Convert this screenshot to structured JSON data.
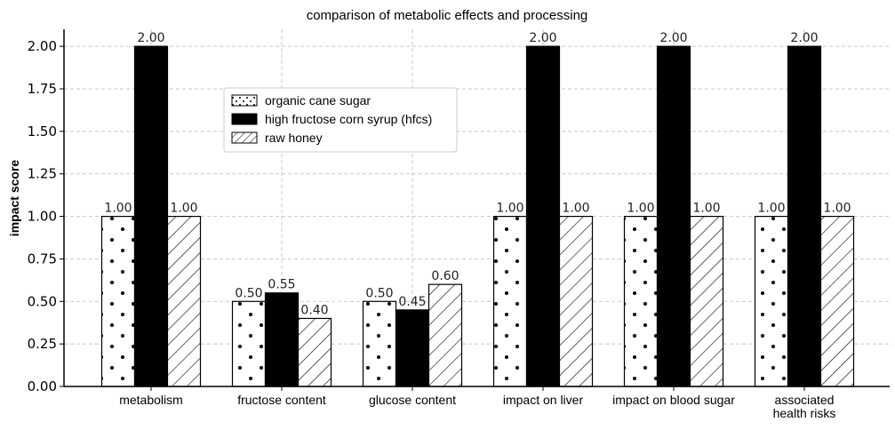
{
  "chart_data": {
    "type": "bar",
    "title": "comparison of metabolic effects and processing",
    "xlabel": "",
    "ylabel": "impact score",
    "ylim": [
      0,
      2.1
    ],
    "yticks": [
      "0.00",
      "0.25",
      "0.50",
      "0.75",
      "1.00",
      "1.25",
      "1.50",
      "1.75",
      "2.00"
    ],
    "grid": true,
    "legend_position": "upper-left (inside)",
    "categories": [
      [
        "metabolism"
      ],
      [
        "fructose content"
      ],
      [
        "glucose content"
      ],
      [
        "impact on liver"
      ],
      [
        "impact on blood sugar"
      ],
      [
        "associated",
        "health risks"
      ]
    ],
    "series": [
      {
        "name": "organic cane sugar",
        "pattern": "dots",
        "color": "#ffffff",
        "values": [
          1.0,
          0.5,
          0.5,
          1.0,
          1.0,
          1.0
        ],
        "labels": [
          "1.00",
          "0.50",
          "0.50",
          "1.00",
          "1.00",
          "1.00"
        ]
      },
      {
        "name": "high fructose corn syrup (hfcs)",
        "pattern": "solid",
        "color": "#000000",
        "values": [
          2.0,
          0.55,
          0.45,
          2.0,
          2.0,
          2.0
        ],
        "labels": [
          "2.00",
          "0.55",
          "0.45",
          "2.00",
          "2.00",
          "2.00"
        ]
      },
      {
        "name": "raw honey",
        "pattern": "hatch",
        "color": "#ffffff",
        "values": [
          1.0,
          0.4,
          0.6,
          1.0,
          1.0,
          1.0
        ],
        "labels": [
          "1.00",
          "0.40",
          "0.60",
          "1.00",
          "1.00",
          "1.00"
        ]
      }
    ]
  }
}
